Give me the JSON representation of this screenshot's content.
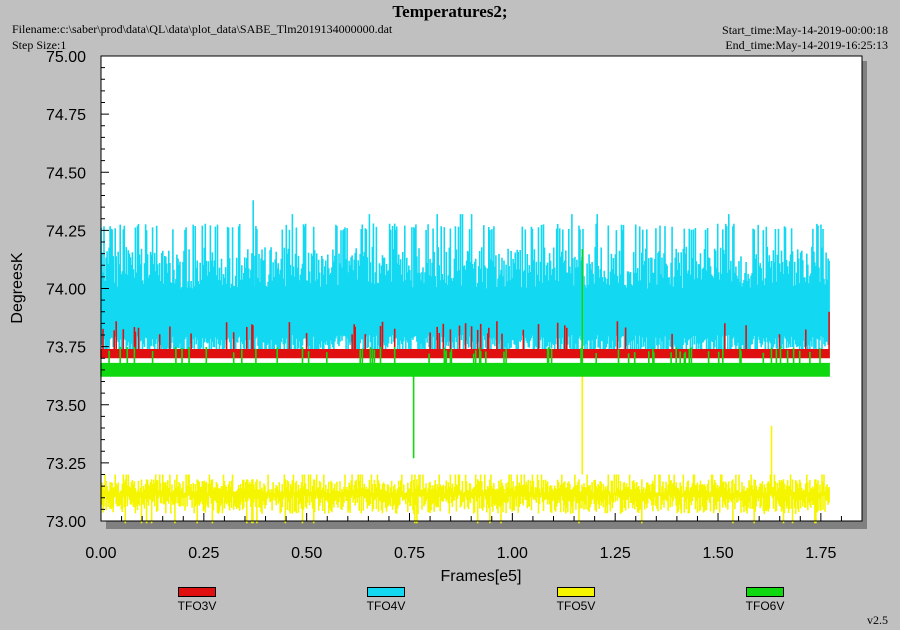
{
  "header": {
    "title": "Temperatures2;",
    "filename": "Filename:c:\\saber\\prod\\data\\QL\\data\\plot_data\\SABE_Tlm2019134000000.dat",
    "step_size": "Step Size:1",
    "start_time": "Start_time:May-14-2019-00:00:18",
    "end_time": "End_time:May-14-2019-16:25:13"
  },
  "footer": {
    "version": "v2.5"
  },
  "chart_data": {
    "type": "line",
    "title": "Temperatures2;",
    "xlabel": "Frames[e5]",
    "ylabel": "DegreesK",
    "xlim": [
      0,
      1.85
    ],
    "ylim": [
      73.0,
      75.0
    ],
    "x_ticks": [
      "0.00",
      "0.25",
      "0.50",
      "0.75",
      "1.00",
      "1.25",
      "1.50",
      "1.75"
    ],
    "y_ticks": [
      "73.00",
      "73.25",
      "73.50",
      "73.75",
      "74.00",
      "74.25",
      "74.50",
      "74.75",
      "75.00"
    ],
    "x_tick_values": [
      0,
      0.25,
      0.5,
      0.75,
      1.0,
      1.25,
      1.5,
      1.75
    ],
    "y_tick_values": [
      73.0,
      73.25,
      73.5,
      73.75,
      74.0,
      74.25,
      74.5,
      74.75,
      75.0
    ],
    "grid": false,
    "legend_position": "bottom",
    "series": [
      {
        "name": "TFO3V",
        "color": "#e01010",
        "x_range": [
          0,
          1.77
        ],
        "y_min": 73.7,
        "y_max": 73.9,
        "typical_max": 73.75
      },
      {
        "name": "TFO4V",
        "color": "#12d8f2",
        "x_range": [
          0,
          1.77
        ],
        "y_min": 73.7,
        "y_max": 74.38,
        "typical_max": 74.25
      },
      {
        "name": "TFO5V",
        "color": "#f5f500",
        "x_range": [
          0,
          1.77
        ],
        "y_min": 72.99,
        "y_max": 74.17,
        "typical_max": 73.2
      },
      {
        "name": "TFO6V",
        "color": "#10d810",
        "x_range": [
          0,
          1.77
        ],
        "y_min": 73.27,
        "y_max": 74.17,
        "typical_max": 73.75
      }
    ]
  }
}
